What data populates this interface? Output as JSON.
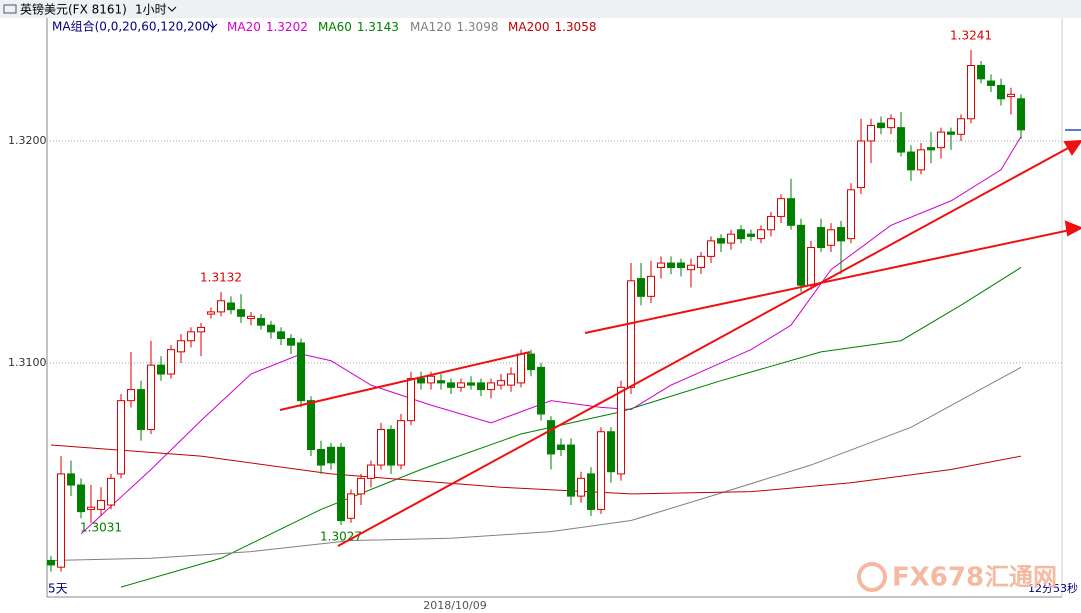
{
  "chart_data": {
    "type": "candlestick",
    "instrument": "英镑美元(FX 8161)",
    "period": "1小时",
    "ma_title": "MA组合(0,0,20,60,120,200)",
    "range_label": "5天",
    "date_label": "2018/10/09",
    "countdown": "12分53秒",
    "watermark": {
      "brand": "FX678",
      "site": "汇通网"
    },
    "up_color": "#e00000",
    "down_color": "#008000",
    "ylim": [
      1.2995,
      1.3259
    ],
    "yticks": [
      {
        "value": 1.32,
        "label": "1.3200"
      },
      {
        "value": 1.31,
        "label": "1.3100"
      }
    ],
    "grid": true,
    "ohlc": [
      [
        1.3011,
        1.3013,
        1.3006,
        1.3009
      ],
      [
        1.3008,
        1.3058,
        1.3006,
        1.305
      ],
      [
        1.305,
        1.3056,
        1.304,
        1.3045
      ],
      [
        1.3045,
        1.3048,
        1.303,
        1.3033
      ],
      [
        1.3034,
        1.3045,
        1.3028,
        1.3035
      ],
      [
        1.3034,
        1.3044,
        1.3031,
        1.3038
      ],
      [
        1.3036,
        1.305,
        1.3034,
        1.3048
      ],
      [
        1.305,
        1.3086,
        1.3048,
        1.3083
      ],
      [
        1.3083,
        1.3105,
        1.308,
        1.3088
      ],
      [
        1.3088,
        1.3092,
        1.3065,
        1.307
      ],
      [
        1.307,
        1.311,
        1.3068,
        1.3099
      ],
      [
        1.3099,
        1.3103,
        1.3092,
        1.3095
      ],
      [
        1.3095,
        1.3108,
        1.3093,
        1.3106
      ],
      [
        1.3105,
        1.3113,
        1.31,
        1.311
      ],
      [
        1.311,
        1.3116,
        1.3107,
        1.3114
      ],
      [
        1.3114,
        1.3118,
        1.3103,
        1.3116
      ],
      [
        1.3122,
        1.3125,
        1.312,
        1.3123
      ],
      [
        1.3123,
        1.3132,
        1.3121,
        1.3128
      ],
      [
        1.3127,
        1.313,
        1.3122,
        1.3124
      ],
      [
        1.3124,
        1.3131,
        1.3118,
        1.3121
      ],
      [
        1.312,
        1.3123,
        1.3117,
        1.3121
      ],
      [
        1.312,
        1.3122,
        1.3115,
        1.3117
      ],
      [
        1.3117,
        1.3119,
        1.3111,
        1.3114
      ],
      [
        1.3114,
        1.3116,
        1.3108,
        1.3111
      ],
      [
        1.3111,
        1.3113,
        1.3104,
        1.3108
      ],
      [
        1.3109,
        1.3111,
        1.308,
        1.3083
      ],
      [
        1.3083,
        1.3085,
        1.3058,
        1.3061
      ],
      [
        1.3061,
        1.3065,
        1.305,
        1.3054
      ],
      [
        1.3062,
        1.3064,
        1.3052,
        1.3055
      ],
      [
        1.3062,
        1.3064,
        1.3027,
        1.3029
      ],
      [
        1.303,
        1.3043,
        1.3028,
        1.3041
      ],
      [
        1.3041,
        1.305,
        1.3036,
        1.3048
      ],
      [
        1.3048,
        1.3056,
        1.3044,
        1.3054
      ],
      [
        1.3054,
        1.3073,
        1.3052,
        1.307
      ],
      [
        1.307,
        1.3072,
        1.305,
        1.3054
      ],
      [
        1.3054,
        1.3077,
        1.3052,
        1.3074
      ],
      [
        1.3074,
        1.3096,
        1.3072,
        1.3093
      ],
      [
        1.3093,
        1.3096,
        1.3088,
        1.3091
      ],
      [
        1.3091,
        1.3096,
        1.3088,
        1.3094
      ],
      [
        1.3092,
        1.3095,
        1.3088,
        1.3091
      ],
      [
        1.3091,
        1.3093,
        1.3086,
        1.3089
      ],
      [
        1.3089,
        1.3093,
        1.3087,
        1.3091
      ],
      [
        1.3091,
        1.3094,
        1.3088,
        1.309
      ],
      [
        1.3091,
        1.3093,
        1.3085,
        1.3088
      ],
      [
        1.3088,
        1.3093,
        1.3084,
        1.3091
      ],
      [
        1.309,
        1.3095,
        1.3088,
        1.3092
      ],
      [
        1.309,
        1.3098,
        1.3087,
        1.3095
      ],
      [
        1.3091,
        1.3106,
        1.3089,
        1.3104
      ],
      [
        1.3104,
        1.3106,
        1.3094,
        1.3097
      ],
      [
        1.3098,
        1.31,
        1.3074,
        1.3077
      ],
      [
        1.3074,
        1.3076,
        1.3052,
        1.3059
      ],
      [
        1.3063,
        1.3066,
        1.3058,
        1.3061
      ],
      [
        1.3063,
        1.3066,
        1.3036,
        1.304
      ],
      [
        1.304,
        1.3051,
        1.3037,
        1.3048
      ],
      [
        1.305,
        1.3053,
        1.3031,
        1.3034
      ],
      [
        1.3034,
        1.3071,
        1.3032,
        1.3069
      ],
      [
        1.3069,
        1.3071,
        1.3046,
        1.3051
      ],
      [
        1.305,
        1.3092,
        1.3047,
        1.3089
      ],
      [
        1.3089,
        1.3145,
        1.3086,
        1.3137
      ],
      [
        1.3138,
        1.3145,
        1.3126,
        1.313
      ],
      [
        1.313,
        1.3146,
        1.3127,
        1.3139
      ],
      [
        1.3143,
        1.3148,
        1.3138,
        1.3145
      ],
      [
        1.3145,
        1.3148,
        1.314,
        1.3143
      ],
      [
        1.3145,
        1.3147,
        1.3139,
        1.3143
      ],
      [
        1.3142,
        1.3147,
        1.3134,
        1.3144
      ],
      [
        1.3143,
        1.315,
        1.314,
        1.3148
      ],
      [
        1.3148,
        1.3157,
        1.3145,
        1.3155
      ],
      [
        1.3156,
        1.3158,
        1.315,
        1.3154
      ],
      [
        1.3154,
        1.316,
        1.3151,
        1.3158
      ],
      [
        1.316,
        1.3162,
        1.3154,
        1.3156
      ],
      [
        1.3158,
        1.316,
        1.3155,
        1.3157
      ],
      [
        1.3156,
        1.3162,
        1.3154,
        1.316
      ],
      [
        1.316,
        1.3168,
        1.3157,
        1.3166
      ],
      [
        1.3166,
        1.3176,
        1.3163,
        1.3174
      ],
      [
        1.3174,
        1.3183,
        1.316,
        1.3162
      ],
      [
        1.3162,
        1.3165,
        1.3132,
        1.3135
      ],
      [
        1.3135,
        1.3155,
        1.3133,
        1.3152
      ],
      [
        1.3161,
        1.3165,
        1.315,
        1.3152
      ],
      [
        1.3153,
        1.3163,
        1.315,
        1.316
      ],
      [
        1.3161,
        1.3164,
        1.314,
        1.3155
      ],
      [
        1.3156,
        1.3181,
        1.3154,
        1.3178
      ],
      [
        1.3179,
        1.321,
        1.3176,
        1.32
      ],
      [
        1.32,
        1.321,
        1.319,
        1.3207
      ],
      [
        1.3208,
        1.3211,
        1.3203,
        1.3206
      ],
      [
        1.3206,
        1.3212,
        1.3203,
        1.321
      ],
      [
        1.3206,
        1.3213,
        1.3193,
        1.3195
      ],
      [
        1.3195,
        1.3198,
        1.3182,
        1.3187
      ],
      [
        1.3187,
        1.3199,
        1.3185,
        1.3196
      ],
      [
        1.3197,
        1.3204,
        1.319,
        1.3196
      ],
      [
        1.3197,
        1.3206,
        1.3192,
        1.3204
      ],
      [
        1.3204,
        1.3206,
        1.3196,
        1.3203
      ],
      [
        1.3203,
        1.3212,
        1.32,
        1.321
      ],
      [
        1.321,
        1.3241,
        1.3208,
        1.3234
      ],
      [
        1.3234,
        1.3236,
        1.3226,
        1.3228
      ],
      [
        1.3227,
        1.323,
        1.3222,
        1.3225
      ],
      [
        1.3225,
        1.3228,
        1.3216,
        1.3219
      ],
      [
        1.322,
        1.3224,
        1.3212,
        1.3221
      ],
      [
        1.3219,
        1.3221,
        1.3201,
        1.3205
      ]
    ],
    "annotations": [
      {
        "value": 1.3132
      },
      {
        "value": 1.3027
      },
      {
        "value": 1.3031
      },
      {
        "value": 1.3241
      }
    ],
    "series": [
      {
        "name": "MA20",
        "last": 1.3202,
        "color": "#d000d0",
        "x": [
          3,
          10,
          15,
          20,
          25,
          28,
          32,
          38,
          44,
          50,
          55,
          58,
          62,
          70,
          74,
          78,
          84,
          90,
          95,
          97
        ],
        "values": [
          1.3023,
          1.3052,
          1.3074,
          1.3095,
          1.3104,
          1.3101,
          1.309,
          1.3081,
          1.3073,
          1.3083,
          1.308,
          1.3079,
          1.309,
          1.3106,
          1.3117,
          1.3142,
          1.3162,
          1.3173,
          1.3187,
          1.3202
        ]
      },
      {
        "name": "MA60",
        "last": 1.3143,
        "color": "#008000",
        "x": [
          7,
          17,
          27,
          37,
          47,
          57,
          67,
          77,
          85,
          91,
          97
        ],
        "values": [
          1.2999,
          1.3012,
          1.3034,
          1.3052,
          1.3068,
          1.3078,
          1.3092,
          1.3105,
          1.311,
          1.3126,
          1.3143
        ]
      },
      {
        "name": "MA120",
        "last": 1.3098,
        "color": "#808080",
        "x": [
          0,
          10,
          20,
          30,
          40,
          50,
          58,
          66,
          76,
          86,
          97
        ],
        "values": [
          1.3011,
          1.3012,
          1.3015,
          1.302,
          1.3021,
          1.3024,
          1.3029,
          1.304,
          1.3054,
          1.3071,
          1.3098
        ]
      },
      {
        "name": "MA200",
        "last": 1.3058,
        "color": "#c00000",
        "x": [
          0,
          15,
          28,
          45,
          58,
          70,
          80,
          90,
          97
        ],
        "values": [
          1.3063,
          1.3058,
          1.305,
          1.3044,
          1.3041,
          1.3042,
          1.3046,
          1.3052,
          1.3058
        ]
      }
    ]
  }
}
